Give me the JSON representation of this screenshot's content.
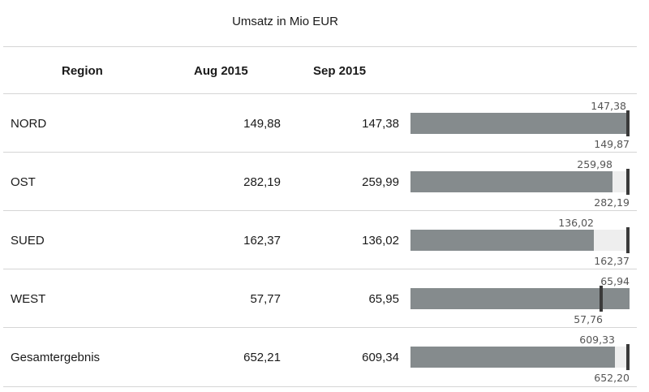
{
  "title": "Umsatz in Mio EUR",
  "headers": {
    "region": "Region",
    "aug": "Aug 2015",
    "sep": "Sep 2015"
  },
  "colors": {
    "bar": "#858b8d",
    "track": "#eeeeee",
    "marker": "#3a3a3a"
  },
  "rows": [
    {
      "region": "NORD",
      "aug": "149,88",
      "sep": "147,38",
      "bar_value": "147,38",
      "target_value": "149,87"
    },
    {
      "region": "OST",
      "aug": "282,19",
      "sep": "259,99",
      "bar_value": "259,98",
      "target_value": "282,19"
    },
    {
      "region": "SUED",
      "aug": "162,37",
      "sep": "136,02",
      "bar_value": "136,02",
      "target_value": "162,37"
    },
    {
      "region": "WEST",
      "aug": "57,77",
      "sep": "65,95",
      "bar_value": "65,94",
      "target_value": "57,76"
    },
    {
      "region": "Gesamtergebnis",
      "aug": "652,21",
      "sep": "609,34",
      "bar_value": "609,33",
      "target_value": "652,20"
    }
  ],
  "chart_data": {
    "type": "bar",
    "title": "Umsatz in Mio EUR",
    "categories": [
      "NORD",
      "OST",
      "SUED",
      "WEST",
      "Gesamtergebnis"
    ],
    "series": [
      {
        "name": "Aug 2015",
        "values": [
          149.88,
          282.19,
          162.37,
          57.77,
          652.21
        ]
      },
      {
        "name": "Sep 2015",
        "values": [
          147.38,
          259.99,
          136.02,
          65.95,
          609.34
        ]
      }
    ],
    "bullet": {
      "bar_values": [
        147.38,
        259.98,
        136.02,
        65.94,
        609.33
      ],
      "target_values": [
        149.87,
        282.19,
        162.37,
        57.76,
        652.2
      ]
    }
  }
}
